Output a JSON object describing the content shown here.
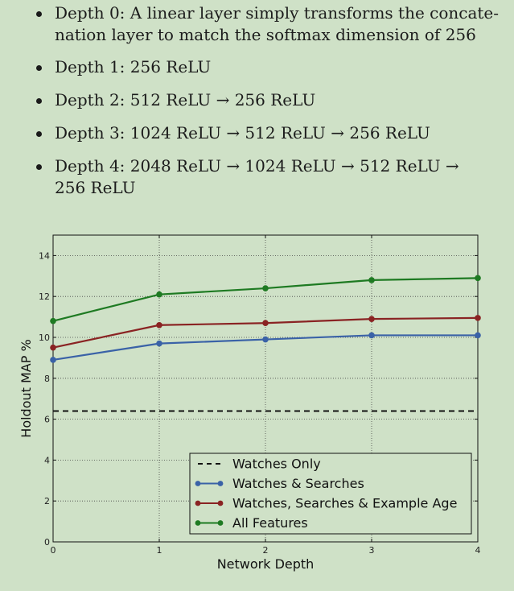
{
  "bullets": [
    {
      "lines": [
        "Depth 0:  A linear layer simply transforms the concate-",
        "nation layer to match the softmax dimension of 256"
      ]
    },
    {
      "lines": [
        "Depth 1:  256 ReLU"
      ]
    },
    {
      "lines": [
        "Depth 2:  512 ReLU → 256 ReLU"
      ]
    },
    {
      "lines": [
        "Depth 3:  1024 ReLU → 512 ReLU → 256 ReLU"
      ]
    },
    {
      "lines": [
        "Depth 4:  2048 ReLU → 1024 ReLU → 512 ReLU →",
        "256 ReLU"
      ]
    }
  ],
  "chart_data": {
    "type": "line",
    "xlabel": "Network Depth",
    "ylabel": "Holdout MAP %",
    "x": [
      0,
      1,
      2,
      3,
      4
    ],
    "xlim": [
      0,
      4
    ],
    "ylim": [
      0,
      15
    ],
    "xticks": [
      "0",
      "1",
      "2",
      "3",
      "4"
    ],
    "yticks": [
      "0",
      "2",
      "4",
      "6",
      "8",
      "10",
      "12",
      "14"
    ],
    "grid": true,
    "grid_style": "dotted",
    "legend_position": "lower-right",
    "series": [
      {
        "name": "Watches Only",
        "style": "dashed",
        "color": "#111111",
        "values": [
          6.4,
          6.4,
          6.4,
          6.4,
          6.4
        ]
      },
      {
        "name": "Watches & Searches",
        "style": "solid",
        "color": "#3a62a7",
        "values": [
          8.9,
          9.7,
          9.9,
          10.1,
          10.1
        ]
      },
      {
        "name": "Watches, Searches & Example Age",
        "style": "solid",
        "color": "#8a2323",
        "values": [
          9.5,
          10.6,
          10.7,
          10.9,
          10.95
        ]
      },
      {
        "name": "All Features",
        "style": "solid",
        "color": "#1e7a22",
        "values": [
          10.8,
          12.1,
          12.4,
          12.8,
          12.9
        ]
      }
    ]
  }
}
